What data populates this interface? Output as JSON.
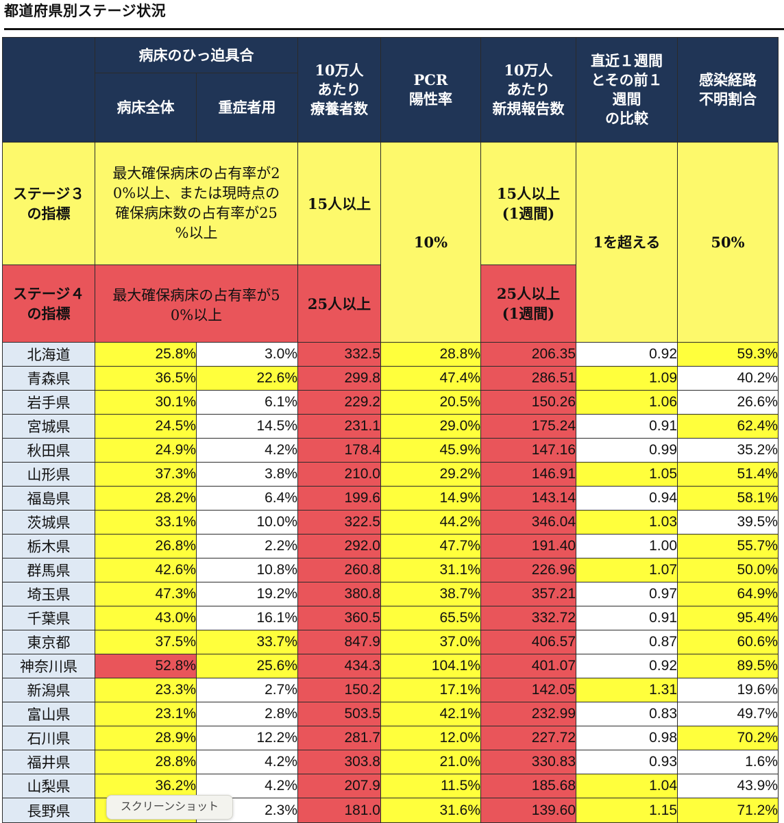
{
  "page": {
    "title": "都道府県別ステージ状況"
  },
  "headers": {
    "bed_group": "病床のひっ迫具合",
    "bed_all": "病床全体",
    "bed_severe": "重症者用",
    "recuperating": [
      "10万人",
      "あたり",
      "療養者数"
    ],
    "pcr": [
      "PCR",
      "陽性率"
    ],
    "new_reports": [
      "10万人",
      "あたり",
      "新規報告数"
    ],
    "week_compare": [
      "直近１週間",
      "とその前１",
      "週間",
      "の比較"
    ],
    "unknown_route": [
      "感染経路",
      "不明割合"
    ]
  },
  "criteria": {
    "stage3": {
      "label": [
        "ステージ３",
        "の指標"
      ],
      "bed": [
        "最大確保病床の占有率が2",
        "0%以上、または現時点の",
        "確保病床数の占有率が25",
        "%以上"
      ],
      "recuperating": "15人以上",
      "new_reports": [
        "15人以上",
        "(1週間)"
      ]
    },
    "stage4": {
      "label": [
        "ステージ４",
        "の指標"
      ],
      "bed": [
        "最大確保病床の占有率が5",
        "0%以上"
      ],
      "recuperating": "25人以上",
      "new_reports": [
        "25人以上",
        "(1週間)"
      ]
    },
    "pcr": "10%",
    "week_compare": "1を超える",
    "unknown_route": "50%"
  },
  "colors": {
    "header": "#203556",
    "stage3": "#fdf96b",
    "stage4": "#e9555a",
    "cell_yellow": "#ffff3c",
    "cell_red": "#e9555a",
    "pref_bg": "#dfe9f4"
  },
  "rows": [
    {
      "pref": "北海道",
      "bed_all": "25.8%",
      "bed_severe": "3.0%",
      "recuperating": "332.5",
      "pcr": "28.8%",
      "new_reports": "206.35",
      "week_compare": "0.92",
      "unknown_route": "59.3%"
    },
    {
      "pref": "青森県",
      "bed_all": "36.5%",
      "bed_severe": "22.6%",
      "recuperating": "299.8",
      "pcr": "47.4%",
      "new_reports": "286.51",
      "week_compare": "1.09",
      "unknown_route": "40.2%"
    },
    {
      "pref": "岩手県",
      "bed_all": "30.1%",
      "bed_severe": "6.1%",
      "recuperating": "229.2",
      "pcr": "20.5%",
      "new_reports": "150.26",
      "week_compare": "1.06",
      "unknown_route": "26.6%"
    },
    {
      "pref": "宮城県",
      "bed_all": "24.5%",
      "bed_severe": "14.5%",
      "recuperating": "231.1",
      "pcr": "29.0%",
      "new_reports": "175.24",
      "week_compare": "0.91",
      "unknown_route": "62.4%"
    },
    {
      "pref": "秋田県",
      "bed_all": "24.9%",
      "bed_severe": "4.2%",
      "recuperating": "178.4",
      "pcr": "45.9%",
      "new_reports": "147.16",
      "week_compare": "0.99",
      "unknown_route": "35.2%"
    },
    {
      "pref": "山形県",
      "bed_all": "37.3%",
      "bed_severe": "3.8%",
      "recuperating": "210.0",
      "pcr": "29.2%",
      "new_reports": "146.91",
      "week_compare": "1.05",
      "unknown_route": "51.4%"
    },
    {
      "pref": "福島県",
      "bed_all": "28.2%",
      "bed_severe": "6.4%",
      "recuperating": "199.6",
      "pcr": "14.9%",
      "new_reports": "143.14",
      "week_compare": "0.94",
      "unknown_route": "58.1%"
    },
    {
      "pref": "茨城県",
      "bed_all": "33.1%",
      "bed_severe": "10.0%",
      "recuperating": "322.5",
      "pcr": "44.2%",
      "new_reports": "346.04",
      "week_compare": "1.03",
      "unknown_route": "39.5%"
    },
    {
      "pref": "栃木県",
      "bed_all": "26.8%",
      "bed_severe": "2.2%",
      "recuperating": "292.0",
      "pcr": "47.7%",
      "new_reports": "191.40",
      "week_compare": "1.00",
      "unknown_route": "55.7%"
    },
    {
      "pref": "群馬県",
      "bed_all": "42.6%",
      "bed_severe": "10.8%",
      "recuperating": "260.8",
      "pcr": "31.1%",
      "new_reports": "226.96",
      "week_compare": "1.07",
      "unknown_route": "50.0%"
    },
    {
      "pref": "埼玉県",
      "bed_all": "47.3%",
      "bed_severe": "19.2%",
      "recuperating": "380.8",
      "pcr": "38.7%",
      "new_reports": "357.21",
      "week_compare": "0.97",
      "unknown_route": "64.9%"
    },
    {
      "pref": "千葉県",
      "bed_all": "43.0%",
      "bed_severe": "16.1%",
      "recuperating": "360.5",
      "pcr": "65.5%",
      "new_reports": "332.72",
      "week_compare": "0.91",
      "unknown_route": "95.4%"
    },
    {
      "pref": "東京都",
      "bed_all": "37.5%",
      "bed_severe": "33.7%",
      "recuperating": "847.9",
      "pcr": "37.0%",
      "new_reports": "406.57",
      "week_compare": "0.87",
      "unknown_route": "60.6%"
    },
    {
      "pref": "神奈川県",
      "bed_all": "52.8%",
      "bed_severe": "25.6%",
      "recuperating": "434.3",
      "pcr": "104.1%",
      "new_reports": "401.07",
      "week_compare": "0.92",
      "unknown_route": "89.5%"
    },
    {
      "pref": "新潟県",
      "bed_all": "23.3%",
      "bed_severe": "2.7%",
      "recuperating": "150.2",
      "pcr": "17.1%",
      "new_reports": "142.05",
      "week_compare": "1.31",
      "unknown_route": "19.6%"
    },
    {
      "pref": "富山県",
      "bed_all": "23.1%",
      "bed_severe": "2.8%",
      "recuperating": "503.5",
      "pcr": "42.1%",
      "new_reports": "232.99",
      "week_compare": "0.83",
      "unknown_route": "49.7%"
    },
    {
      "pref": "石川県",
      "bed_all": "28.9%",
      "bed_severe": "12.2%",
      "recuperating": "281.7",
      "pcr": "12.0%",
      "new_reports": "227.72",
      "week_compare": "0.98",
      "unknown_route": "70.2%"
    },
    {
      "pref": "福井県",
      "bed_all": "28.8%",
      "bed_severe": "4.2%",
      "recuperating": "303.8",
      "pcr": "21.0%",
      "new_reports": "330.83",
      "week_compare": "0.93",
      "unknown_route": "1.6%"
    },
    {
      "pref": "山梨県",
      "bed_all": "36.2%",
      "bed_severe": "4.2%",
      "recuperating": "207.9",
      "pcr": "11.5%",
      "new_reports": "185.68",
      "week_compare": "1.04",
      "unknown_route": "43.9%"
    },
    {
      "pref": "長野県",
      "bed_all": "",
      "bed_severe": "2.3%",
      "recuperating": "181.0",
      "pcr": "31.6%",
      "new_reports": "139.60",
      "week_compare": "1.15",
      "unknown_route": "71.2%"
    }
  ],
  "tooltip": {
    "text": "スクリーンショット"
  }
}
